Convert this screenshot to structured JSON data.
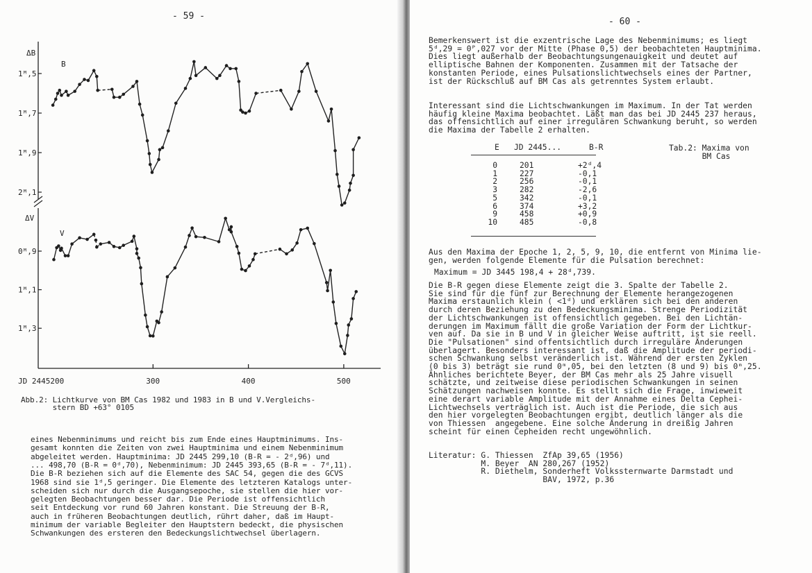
{
  "left_page": {
    "page_number": "- 59 -",
    "caption": [
      "Abb.2: Lichtkurve von BM Cas 1982 und 1983 in B und V.Vergleichs-",
      "       stern BD +63° 0105"
    ],
    "body": [
      "eines Nebenminimums und reicht bis zum Ende eines Hauptminimums. Ins-",
      "gesamt konnten die Zeiten von zwei Hauptminima und einem Nebenminimum",
      "abgeleitet werden. Hauptminima: JD 2445 299,10 (B-R = - 2ᵈ,96) und",
      "... 498,70 (B-R = 0ᵈ,70), Nebenminimum: JD 2445 393,65 (B-R = - 7ᵈ,11).",
      "Die B-R beziehen sich auf die Elemente des SAC 54, gegen die des GCVS",
      "1968 sind sie 1ᵈ,5 geringer. Die Elemente des letzteren Katalogs unter-",
      "scheiden sich nur durch die Ausgangsepoche, sie stellen die hier vor-",
      "gelegten Beobachtungen besser dar. Die Periode ist offensichtlich",
      "seit Entdeckung vor rund 60 Jahren konstant. Die Streuung der B-R,",
      "auch in früheren Beobachtungen deutlich, rührt daher, daß im Haupt-",
      "minimum der variable Begleiter den Hauptstern bedeckt, die physischen",
      "Schwankungen des ersteren den Bedeckungslichtwechsel überlagern."
    ]
  },
  "right_page": {
    "page_number": "- 60 -",
    "para1": [
      "Bemerkenswert ist die exzentrische Lage des Nebenminimums; es liegt",
      "5ᵈ,29 = 0ᴾ,027 vor der Mitte (Phase 0,5) der beobachteten Hauptminima.",
      "Dies liegt außerhalb der Beobachtungsungenauigkeit und deutet auf",
      "elliptische Bahnen der Komponenten. Zusammen mit der Tatsache der",
      "konstanten Periode, eines Pulsationslichtwechsels eines der Partner,",
      "ist der Rückschluß auf BM Cas als getrenntes System erlaubt."
    ],
    "para2": [
      "Interessant sind die Lichtschwankungen im Maximum. In der Tat werden",
      "häufig kleine Maxima beobachtet. Läßt man das bei JD 2445 237 heraus,",
      "das offensichtlich auf einer irregulären Schwankung beruht, so werden",
      "die Maxima der Tabelle 2 erhalten."
    ],
    "table": {
      "caption": [
        "Tab.2: Maxima von",
        "       BM Cas"
      ],
      "headers": [
        "E",
        "JD 2445...",
        "B-R"
      ],
      "rows": [
        [
          "0",
          "201",
          "+2ᵈ,4"
        ],
        [
          "1",
          "227",
          "-0,1"
        ],
        [
          "2",
          "256",
          "-0,1"
        ],
        [
          "3",
          "282",
          "-2,6"
        ],
        [
          "5",
          "342",
          "-0,1"
        ],
        [
          "6",
          "374",
          "+3,2"
        ],
        [
          "9",
          "458",
          "+0,9"
        ],
        [
          "10",
          "485",
          "-0,8"
        ]
      ]
    },
    "para3": [
      "Aus den Maxima der Epoche 1, 2, 5, 9, 10, die entfernt von Minima lie-",
      "gen, werden folgende Elemente für die Pulsation berechnet:"
    ],
    "formula": "Maximum = JD 3445 198,4 + 28ᵈ,739.",
    "para4": [
      "Die B-R gegen diese Elemente zeigt die 3. Spalte der Tabelle 2.",
      "Sie sind für die fünf zur Berechnung der Elemente herangezogenen",
      "Maxima erstaunlich klein ( <1ᵈ) und erklären sich bei den anderen",
      "durch deren Beziehung zu den Bedeckungsminima. Strenge Periodizität",
      "der Lichtschwankungen ist offensichtlich gegeben. Bei den Lichtän-",
      "derungen im Maximum fällt die große Variation der Form der Lichtkur-",
      "ven auf. Da sie in B und V in gleicher Weise auftritt, ist sie reell.",
      "Die \"Pulsationen\" sind offentsichtlich durch irreguläre Änderungen",
      "überlagert. Besonders interessant ist, daß die Amplitude der periodi-",
      "schen Schwankung selbst veränderlich ist. Während der ersten Zyklen",
      "(0 bis 3) beträgt sie rund 0ᵐ,05, bei den letzten (8 und 9) bis 0ᵐ,25.",
      "Ähnliches berichtete Beyer, der BM Cas mehr als 25 Jahre visuell",
      "schätzte, und zeitweise diese periodischen Schwankungen in seinen",
      "Schätzungen nachweisen konnte. Es stellt sich die Frage, inwieweit",
      "eine derart variable Amplitude mit der Annahme eines Delta Cephei-",
      "Lichtwechsels verträglich ist. Auch ist die Periode, die sich aus",
      "den hier vorgelegten Beobachtungen ergibt, deutlich länger als die",
      "von Thiessen  angegebene. Eine solche Änderung in dreißig Jahren",
      "scheint für einen Cepheiden recht ungewöhnlich."
    ],
    "literature": [
      "Literatur: G. Thiessen  ZfAp 39,65 (1956)",
      "           M. Beyer  AN 280,267 (1952)",
      "           R. Diethelm, Sonderheft Volkssternwarte Darmstadt und",
      "                        BAV, 1972, p.36"
    ]
  },
  "chart_data": {
    "type": "scatter",
    "title": "",
    "xlabel": "JD 2445200",
    "x_ticks": [
      "JD 2445200",
      "300",
      "400",
      "500"
    ],
    "x_tick_values": [
      200,
      300,
      400,
      500
    ],
    "xlim": [
      190,
      525
    ],
    "line_color": "#222222",
    "panels": [
      {
        "name": "B",
        "ylabel": "ΔB",
        "y_ticks": [
          "1ᴹ,5",
          "1ᴹ,7",
          "1ᴹ,9",
          "2ᴹ,1"
        ],
        "y_tick_values": [
          1.5,
          1.7,
          1.9,
          2.1
        ],
        "y_inverted": true,
        "dashed_ranges": [
          [
            242,
            257
          ],
          [
            408,
            434
          ]
        ],
        "x": [
          195,
          198,
          200,
          202,
          204,
          209,
          211,
          218,
          223,
          228,
          232,
          238,
          241,
          242,
          257,
          259,
          265,
          269,
          279,
          283,
          286,
          289,
          294,
          296,
          297,
          299,
          306,
          307,
          310,
          316,
          324,
          334,
          339,
          343,
          345,
          355,
          367,
          370,
          377,
          381,
          387,
          390,
          392,
          394,
          397,
          401,
          408,
          434,
          445,
          453,
          456,
          462,
          471,
          484,
          487,
          491,
          493,
          495,
          498,
          501,
          506,
          507,
          510,
          510,
          516
        ],
        "y": [
          1.66,
          1.63,
          1.6,
          1.585,
          1.61,
          1.59,
          1.61,
          1.59,
          1.555,
          1.53,
          1.535,
          1.485,
          1.515,
          1.585,
          1.58,
          1.62,
          1.62,
          1.605,
          1.565,
          1.54,
          1.655,
          1.71,
          1.84,
          1.905,
          1.96,
          2.0,
          1.935,
          1.885,
          1.875,
          1.79,
          1.65,
          1.575,
          1.525,
          1.44,
          1.51,
          1.47,
          1.525,
          1.51,
          1.46,
          1.475,
          1.475,
          1.54,
          1.685,
          1.695,
          1.7,
          1.69,
          1.6,
          1.585,
          1.68,
          1.59,
          1.49,
          1.45,
          1.59,
          1.74,
          1.68,
          1.89,
          2.01,
          2.07,
          2.165,
          2.155,
          2.09,
          2.055,
          2.015,
          1.885,
          1.825
        ]
      },
      {
        "name": "V",
        "ylabel": "ΔV",
        "y_ticks": [
          "0ᴹ,9",
          "1ᴹ,1",
          "1ᴹ,3"
        ],
        "y_tick_values": [
          0.9,
          1.1,
          1.3
        ],
        "y_inverted": true,
        "dashed_ranges": [
          [
            238,
            245
          ],
          [
            407,
            433
          ]
        ],
        "x": [
          196,
          199,
          201,
          203,
          204,
          208,
          211,
          215,
          223,
          231,
          238,
          240,
          241,
          245,
          254,
          259,
          265,
          269,
          278,
          280,
          283,
          283,
          285,
          287,
          288,
          292,
          294,
          297,
          300,
          304,
          306,
          309,
          315,
          323,
          334,
          338,
          341,
          345,
          354,
          369,
          376,
          380,
          382,
          382,
          388,
          390,
          393,
          397,
          401,
          405,
          407,
          433,
          440,
          446,
          451,
          455,
          462,
          469,
          482,
          483,
          486,
          489,
          492,
          497,
          501,
          504,
          505,
          508,
          510,
          513
        ],
        "y": [
          0.944,
          0.882,
          0.873,
          0.896,
          0.885,
          0.924,
          0.924,
          0.863,
          0.831,
          0.839,
          0.813,
          0.843,
          0.879,
          0.863,
          0.855,
          0.876,
          0.882,
          0.87,
          0.849,
          0.823,
          0.888,
          0.912,
          0.936,
          0.986,
          1.069,
          1.232,
          1.292,
          1.339,
          1.34,
          1.263,
          1.271,
          1.215,
          1.033,
          0.987,
          0.879,
          0.819,
          0.78,
          0.825,
          0.829,
          0.851,
          0.73,
          0.789,
          0.774,
          0.8,
          0.876,
          0.911,
          0.994,
          1.001,
          0.977,
          0.944,
          0.914,
          0.89,
          0.914,
          0.894,
          0.858,
          0.789,
          0.781,
          0.861,
          1.063,
          1.105,
          1.0,
          1.164,
          1.275,
          1.393,
          1.432,
          1.337,
          1.283,
          1.251,
          1.146,
          1.11
        ]
      }
    ]
  }
}
